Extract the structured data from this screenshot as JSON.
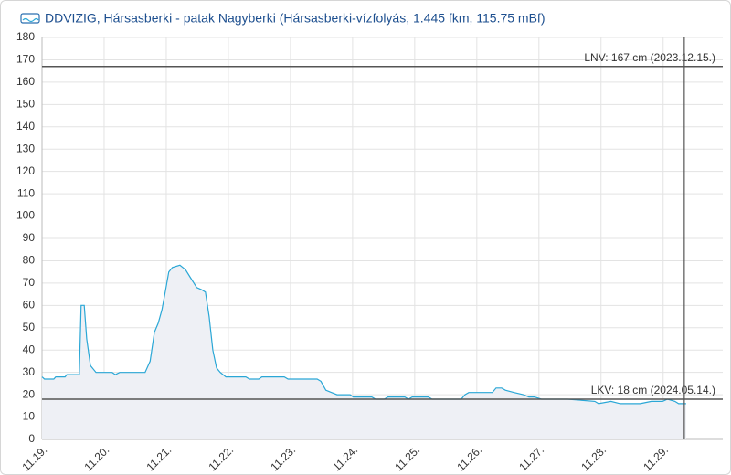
{
  "chart_data": {
    "type": "line",
    "title": "DDVIZIG, Hársasberki - patak Nagyberki (Hársasberki-vízfolyás, 1.445 fkm, 115.75 mBf)",
    "x": [
      0,
      0.04,
      0.19,
      0.22,
      0.37,
      0.4,
      0.6,
      0.63,
      0.68,
      0.72,
      0.78,
      0.87,
      1.13,
      1.18,
      1.25,
      1.66,
      1.74,
      1.81,
      1.87,
      1.93,
      1.99,
      2.04,
      2.1,
      2.22,
      2.31,
      2.4,
      2.49,
      2.57,
      2.63,
      2.69,
      2.75,
      2.81,
      2.87,
      2.96,
      3.28,
      3.34,
      3.49,
      3.54,
      3.9,
      3.96,
      4.43,
      4.49,
      4.57,
      4.66,
      4.75,
      4.96,
      5.01,
      5.31,
      5.37,
      5.51,
      5.57,
      5.84,
      5.9,
      5.96,
      6.22,
      6.28,
      6.75,
      6.81,
      6.87,
      6.96,
      7.01,
      7.25,
      7.31,
      7.4,
      7.46,
      7.6,
      7.75,
      7.84,
      7.93,
      8.04,
      8.46,
      8.9,
      8.96,
      9.16,
      9.31,
      9.63,
      9.81,
      9.99,
      10.07,
      10.19,
      10.25,
      10.37
    ],
    "series": [
      {
        "color": "#2aa7d6",
        "fill": "#eef0f5",
        "values": [
          28,
          27,
          27,
          28,
          28,
          29,
          29,
          60,
          60,
          45,
          33,
          30,
          30,
          29,
          30,
          30,
          35,
          48,
          52,
          58,
          67,
          75,
          77,
          78,
          76,
          72,
          68,
          67,
          66,
          55,
          40,
          32,
          30,
          28,
          28,
          27,
          27,
          28,
          28,
          27,
          27,
          26,
          22,
          21,
          20,
          20,
          19,
          19,
          18,
          18,
          19,
          19,
          18,
          19,
          19,
          18,
          18,
          20,
          21,
          21,
          21,
          21,
          23,
          23,
          22,
          21,
          20,
          19,
          19,
          18,
          18,
          17,
          16,
          17,
          16,
          16,
          17,
          17,
          18,
          17,
          16,
          16
        ]
      }
    ],
    "xlim": [
      0,
      10.96
    ],
    "xticks": [
      {
        "value": 0,
        "label": "11.19."
      },
      {
        "value": 1,
        "label": "11.20."
      },
      {
        "value": 2,
        "label": "11.21."
      },
      {
        "value": 3,
        "label": "11.22."
      },
      {
        "value": 4,
        "label": "11.23."
      },
      {
        "value": 5,
        "label": "11.24."
      },
      {
        "value": 6,
        "label": "11.25."
      },
      {
        "value": 7,
        "label": "11.26."
      },
      {
        "value": 8,
        "label": "11.27."
      },
      {
        "value": 9,
        "label": "11.28."
      },
      {
        "value": 10,
        "label": "11.29."
      }
    ],
    "ylim": [
      0,
      180
    ],
    "yticks": [
      0,
      10,
      20,
      30,
      40,
      50,
      60,
      70,
      80,
      90,
      100,
      110,
      120,
      130,
      140,
      150,
      160,
      170,
      180
    ],
    "grid": true,
    "reference_lines": [
      {
        "value": 167,
        "label": "LNV: 167 cm (2023.12.15.)"
      },
      {
        "value": 18,
        "label": "LKV: 18 cm (2024.05.14.)"
      }
    ],
    "vline": 10.34
  }
}
